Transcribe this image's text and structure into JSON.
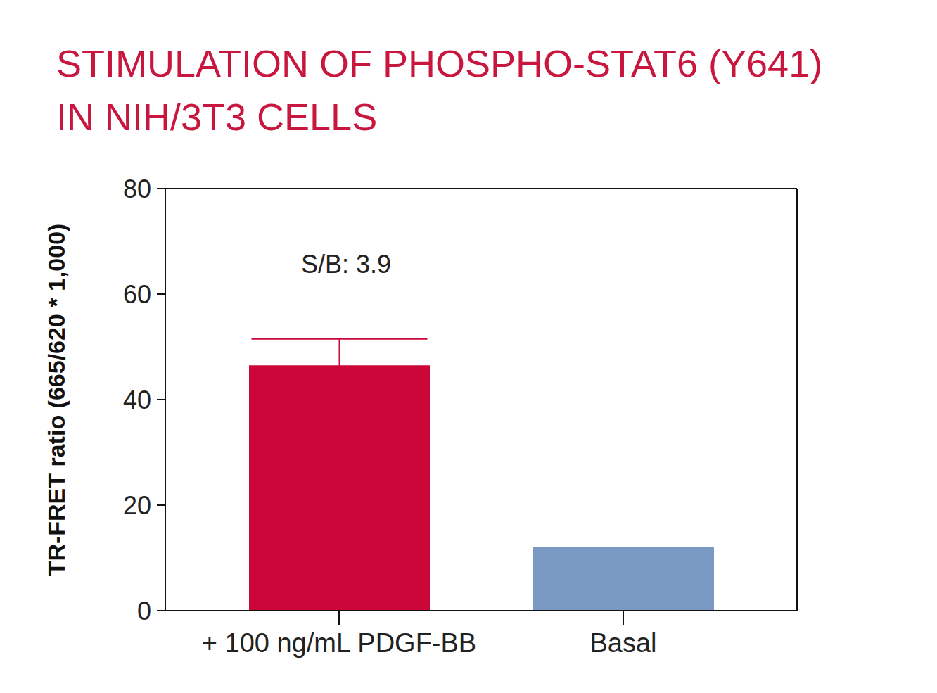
{
  "chart_data": {
    "type": "bar",
    "title": "STIMULATION OF PHOSPHO-STAT6 (Y641) IN NIH/3T3 CELLS",
    "y_label": "TR-FRET ratio (665/620 * 1,000)",
    "annotation": "S/B: 3.9",
    "categories": [
      "+ 100 ng/mL PDGF-BB",
      "Basal"
    ],
    "values": [
      46.5,
      12
    ],
    "errors": [
      5,
      null
    ],
    "colors": [
      "#cc0639",
      "#7a9ac4"
    ],
    "ylim": [
      0,
      80
    ],
    "yticks": [
      0,
      20,
      40,
      60,
      80
    ],
    "grid": false
  }
}
